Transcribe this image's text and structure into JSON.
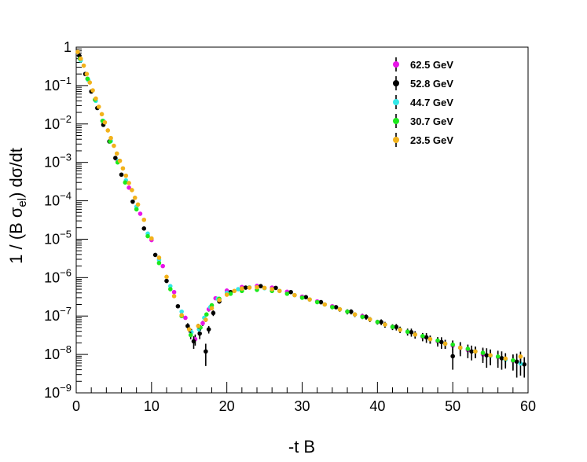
{
  "chart_data": {
    "type": "scatter",
    "title": "",
    "xlabel": "-t B",
    "ylabel": "1 / (B σ_el)  dσ/dt",
    "ylabel_parts": {
      "pre": "1 / (B σ",
      "sub": "el",
      "post": ")  dσ/dt"
    },
    "xlim": [
      0,
      60
    ],
    "ylim": [
      1e-09,
      1
    ],
    "yscale": "log",
    "grid": false,
    "legend_position": "top-right",
    "x_ticks": [
      0,
      10,
      20,
      30,
      40,
      50,
      60
    ],
    "x_tick_labels": [
      "0",
      "10",
      "20",
      "30",
      "40",
      "50",
      "60"
    ],
    "y_ticks": [
      {
        "value": 1,
        "base": "1",
        "exp": ""
      },
      {
        "value": 0.1,
        "base": "10",
        "exp": "−1"
      },
      {
        "value": 0.01,
        "base": "10",
        "exp": "−2"
      },
      {
        "value": 0.001,
        "base": "10",
        "exp": "−3"
      },
      {
        "value": 0.0001,
        "base": "10",
        "exp": "−4"
      },
      {
        "value": 1e-05,
        "base": "10",
        "exp": "−5"
      },
      {
        "value": 1e-06,
        "base": "10",
        "exp": "−6"
      },
      {
        "value": 1e-07,
        "base": "10",
        "exp": "−7"
      },
      {
        "value": 1e-08,
        "base": "10",
        "exp": "−8"
      },
      {
        "value": 1e-09,
        "base": "10",
        "exp": "−9"
      }
    ],
    "series": [
      {
        "name": "62.5 GeV",
        "color": "#e816e8",
        "x": [
          0.5,
          1.5,
          2.5,
          3.5,
          4.5,
          5.5,
          7,
          8.5,
          10,
          11.5,
          13,
          14.5,
          15.8,
          16.8,
          17.6,
          18.5,
          20,
          22,
          24,
          26,
          28,
          30,
          32,
          34,
          36,
          38,
          40,
          42,
          44,
          46,
          48,
          50,
          52,
          54,
          56,
          58
        ],
        "y": [
          0.5,
          0.15,
          0.042,
          0.012,
          0.0036,
          0.0011,
          0.00022,
          4.6e-05,
          9.5e-06,
          2e-06,
          4.2e-07,
          9e-08,
          2.5e-08,
          6.5e-08,
          1.5e-07,
          2.9e-07,
          4.6e-07,
          5.7e-07,
          6.1e-07,
          5.5e-07,
          4.3e-07,
          3.2e-07,
          2.4e-07,
          1.8e-07,
          1.3e-07,
          1e-07,
          7e-08,
          5.2e-08,
          3.9e-08,
          2.9e-08,
          2.2e-08,
          1.7e-08,
          1.3e-08,
          1e-08,
          8.5e-09,
          6.8e-09
        ],
        "err": [
          0.02,
          0.005,
          0.002,
          0.0008,
          0.0002,
          6e-05,
          1e-05,
          2e-06,
          5e-07,
          1e-07,
          3e-08,
          1e-08,
          8e-09,
          1e-08,
          2e-08,
          3e-08,
          4e-08,
          5e-08,
          5e-08,
          5e-08,
          4e-08,
          3e-08,
          3e-08,
          2e-08,
          2e-08,
          1.5e-08,
          1e-08,
          9e-09,
          8e-09,
          7e-09,
          6e-09,
          6e-09,
          5e-09,
          4e-09,
          4e-09,
          3e-09
        ]
      },
      {
        "name": "52.8 GeV",
        "color": "#000000",
        "x": [
          0.4,
          1.2,
          2,
          2.8,
          3.6,
          4.4,
          5.2,
          6,
          7.5,
          9,
          10.5,
          12,
          13.5,
          14.8,
          15.6,
          16.4,
          17.2,
          17.6,
          18.2,
          19,
          20.5,
          22.5,
          24.5,
          26.5,
          28.5,
          30.5,
          32.5,
          34.5,
          36.5,
          38.5,
          40.5,
          42.5,
          44.5,
          46.5,
          48.5,
          50,
          51,
          52.5,
          54.5,
          56.5,
          58.5,
          59.5
        ],
        "y": [
          0.6,
          0.2,
          0.07,
          0.026,
          0.0095,
          0.0035,
          0.0013,
          0.00048,
          9.5e-05,
          1.9e-05,
          3.9e-06,
          8.2e-07,
          1.8e-07,
          5.5e-08,
          2.2e-08,
          3.5e-08,
          1.2e-08,
          4.5e-08,
          1.2e-07,
          2.4e-07,
          4.2e-07,
          5.5e-07,
          6e-07,
          5.4e-07,
          4.2e-07,
          3.1e-07,
          2.3e-07,
          1.7e-07,
          1.3e-07,
          9.5e-08,
          7e-08,
          5.2e-08,
          3.8e-08,
          2.8e-08,
          2.1e-08,
          9e-09,
          1.5e-08,
          1.2e-08,
          9.5e-09,
          8e-09,
          6.5e-09,
          5.5e-09
        ],
        "err": [
          0.02,
          0.006,
          0.002,
          0.0008,
          0.0003,
          0.0001,
          4e-05,
          1.5e-05,
          4e-06,
          8e-07,
          2e-07,
          5e-08,
          2e-08,
          1e-08,
          8e-09,
          1e-08,
          7e-09,
          1e-08,
          2e-08,
          3e-08,
          4e-08,
          5e-08,
          5e-08,
          5e-08,
          4e-08,
          3e-08,
          3e-08,
          2e-08,
          2e-08,
          1.5e-08,
          1.2e-08,
          1e-08,
          9e-09,
          8e-09,
          7e-09,
          5e-09,
          6e-09,
          5e-09,
          5e-09,
          4e-09,
          4e-09,
          3e-09
        ]
      },
      {
        "name": "44.7 GeV",
        "color": "#33e8e8",
        "x": [
          0.6,
          1.6,
          2.6,
          3.6,
          4.6,
          5.6,
          6.6,
          8,
          9.5,
          11,
          12.5,
          14,
          15.3,
          16.3,
          17,
          17.8,
          18.8,
          20,
          21.5,
          23,
          25,
          27,
          29,
          31,
          33,
          35,
          37,
          39,
          41,
          43,
          45,
          47,
          49,
          51,
          53,
          55,
          57,
          59
        ],
        "y": [
          0.45,
          0.14,
          0.04,
          0.012,
          0.0036,
          0.0011,
          0.00034,
          7e-05,
          1.4e-05,
          2.9e-06,
          6e-07,
          1.3e-07,
          3.8e-08,
          4.5e-08,
          9e-08,
          1.7e-07,
          2.8e-07,
          4e-07,
          5e-07,
          5.6e-07,
          5.3e-07,
          4.5e-07,
          3.5e-07,
          2.7e-07,
          2e-07,
          1.5e-07,
          1.1e-07,
          8.2e-08,
          6e-08,
          4.5e-08,
          3.3e-08,
          2.5e-08,
          1.9e-08,
          1.5e-08,
          1.2e-08,
          9.2e-09,
          7.3e-09,
          5.8e-09
        ],
        "err": [
          0.02,
          0.005,
          0.0015,
          0.0005,
          0.00015,
          5e-05,
          2e-05,
          4e-06,
          8e-07,
          2e-07,
          4e-08,
          1e-08,
          8e-09,
          8e-09,
          1e-08,
          2e-08,
          3e-08,
          4e-08,
          4e-08,
          5e-08,
          5e-08,
          4e-08,
          3e-08,
          3e-08,
          2e-08,
          2e-08,
          1.5e-08,
          1.2e-08,
          1e-08,
          8e-09,
          7e-09,
          6e-09,
          5e-09,
          5e-09,
          4e-09,
          4e-09,
          3e-09,
          3e-09
        ]
      },
      {
        "name": "30.7 GeV",
        "color": "#1de81d",
        "x": [
          0.5,
          1.5,
          2.5,
          3.5,
          4.5,
          5.5,
          6.5,
          8,
          9.5,
          11,
          12.5,
          14,
          15.2,
          16.5,
          17.3,
          18,
          19,
          20.5,
          22,
          24,
          26,
          28,
          30,
          32,
          34,
          36,
          38,
          40,
          42,
          44,
          46,
          48,
          50,
          52,
          54,
          56,
          58
        ],
        "y": [
          0.5,
          0.15,
          0.043,
          0.012,
          0.0035,
          0.001,
          0.0003,
          6e-05,
          1.2e-05,
          2.4e-06,
          5e-07,
          1e-07,
          3.2e-08,
          5e-08,
          1.1e-07,
          1.9e-07,
          2.8e-07,
          3.8e-07,
          4.5e-07,
          4.8e-07,
          4.5e-07,
          3.8e-07,
          3e-07,
          2.3e-07,
          1.7e-07,
          1.3e-07,
          9.5e-08,
          7e-08,
          5.2e-08,
          3.9e-08,
          3e-08,
          2.3e-08,
          1.8e-08,
          1.4e-08,
          1.1e-08,
          8.8e-09,
          7e-09
        ],
        "err": [
          0.02,
          0.005,
          0.0015,
          0.0005,
          0.00015,
          5e-05,
          1.5e-05,
          3e-06,
          6e-07,
          1.5e-07,
          3e-08,
          1e-08,
          7e-09,
          8e-09,
          1e-08,
          2e-08,
          3e-08,
          3e-08,
          4e-08,
          4e-08,
          4e-08,
          3e-08,
          3e-08,
          2e-08,
          2e-08,
          1.5e-08,
          1.2e-08,
          1e-08,
          8e-09,
          7e-09,
          6e-09,
          5e-09,
          5e-09,
          4e-09,
          4e-09,
          3e-09,
          3e-09
        ]
      },
      {
        "name": "23.5 GeV",
        "color": "#f2b21a",
        "x": [
          0.2,
          0.6,
          1,
          1.4,
          1.8,
          2.2,
          2.6,
          3,
          3.4,
          3.8,
          4.2,
          4.6,
          5,
          5.4,
          5.8,
          6.2,
          6.6,
          7,
          7.4,
          7.8,
          8.2,
          9,
          10,
          11,
          12,
          13,
          14,
          15,
          16.2,
          17.2,
          18,
          19,
          20,
          21,
          22,
          23,
          24,
          25,
          26,
          27,
          29,
          31,
          33,
          35,
          37,
          39,
          41,
          43,
          45,
          47,
          49,
          51,
          53,
          55,
          57,
          59
        ],
        "y": [
          0.75,
          0.5,
          0.33,
          0.2,
          0.12,
          0.075,
          0.046,
          0.028,
          0.018,
          0.011,
          0.0068,
          0.0043,
          0.0027,
          0.0017,
          0.0011,
          0.0007,
          0.00045,
          0.00029,
          0.00019,
          0.00012,
          8e-05,
          3.2e-05,
          1.05e-05,
          3.3e-06,
          1.05e-06,
          3.3e-07,
          1.05e-07,
          4.5e-08,
          5.5e-08,
          8e-08,
          1.6e-07,
          2.6e-07,
          3.6e-07,
          4.5e-07,
          5.2e-07,
          5.5e-07,
          5.6e-07,
          5.4e-07,
          5e-07,
          4.5e-07,
          3.5e-07,
          2.7e-07,
          2e-07,
          1.5e-07,
          1.1e-07,
          8.2e-08,
          6e-08,
          4.4e-08,
          3.3e-08,
          2.5e-08,
          1.9e-08,
          1.5e-08,
          1.2e-08,
          9.5e-09,
          7.8e-09,
          8.8e-09
        ],
        "err": [
          0.02,
          0.015,
          0.01,
          0.006,
          0.004,
          0.002,
          0.0015,
          0.001,
          0.0006,
          0.0004,
          0.0002,
          0.00015,
          0.0001,
          6e-05,
          4e-05,
          3e-05,
          2e-05,
          1e-05,
          8e-06,
          5e-06,
          3e-06,
          1e-06,
          4e-07,
          1.5e-07,
          5e-08,
          2e-08,
          1e-08,
          8e-09,
          8e-09,
          1e-08,
          2e-08,
          3e-08,
          3e-08,
          4e-08,
          4e-08,
          5e-08,
          5e-08,
          5e-08,
          4e-08,
          4e-08,
          3e-08,
          3e-08,
          2e-08,
          2e-08,
          1.5e-08,
          1.2e-08,
          1e-08,
          8e-09,
          7e-09,
          6e-09,
          5e-09,
          5e-09,
          4e-09,
          4e-09,
          3e-09,
          3e-09
        ]
      }
    ]
  }
}
